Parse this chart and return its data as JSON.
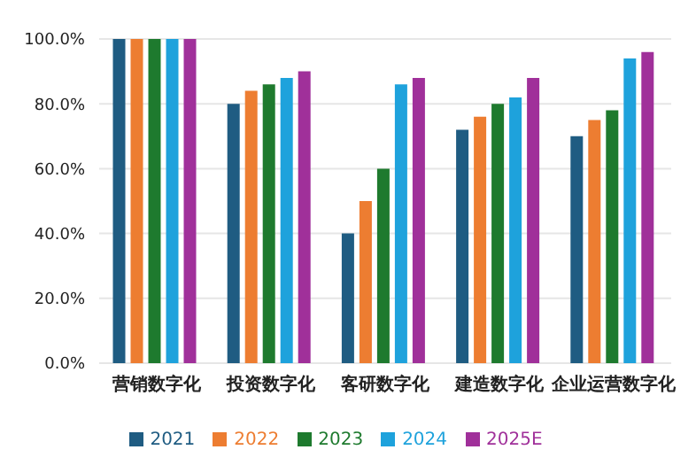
{
  "chart_data": {
    "type": "bar",
    "categories": [
      "营销数字化",
      "投资数字化",
      "客研数字化",
      "建造数字化",
      "企业运营数字化"
    ],
    "series": [
      {
        "name": "2021",
        "color": "#1f5c82",
        "values": [
          100,
          80,
          40,
          72,
          70
        ]
      },
      {
        "name": "2022",
        "color": "#ed7d31",
        "values": [
          100,
          84,
          50,
          76,
          75
        ]
      },
      {
        "name": "2023",
        "color": "#1e7a2e",
        "values": [
          100,
          86,
          60,
          80,
          78
        ]
      },
      {
        "name": "2024",
        "color": "#1ea2dc",
        "values": [
          100,
          88,
          86,
          82,
          94
        ]
      },
      {
        "name": "2025E",
        "color": "#a0309a",
        "values": [
          100,
          90,
          88,
          88,
          96
        ]
      }
    ],
    "ylim": [
      0,
      100
    ],
    "yticks": [
      {
        "value": 0,
        "label": "0.0%"
      },
      {
        "value": 20,
        "label": "20.0%"
      },
      {
        "value": 40,
        "label": "40.0%"
      },
      {
        "value": 60,
        "label": "60.0%"
      },
      {
        "value": 80,
        "label": "80.0%"
      },
      {
        "value": 100,
        "label": "100.0%"
      }
    ],
    "grid": "y",
    "legend": "bottom"
  }
}
